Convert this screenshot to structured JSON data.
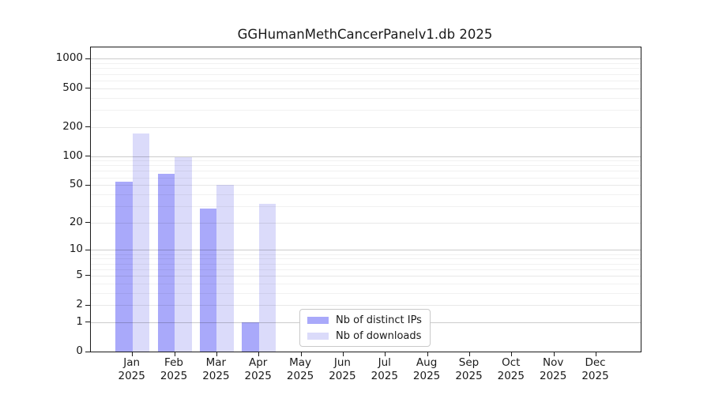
{
  "chart_data": {
    "type": "bar",
    "title": "GGHumanMethCancerPanelv1.db 2025",
    "categories": [
      "Jan",
      "Feb",
      "Mar",
      "Apr",
      "May",
      "Jun",
      "Jul",
      "Aug",
      "Sep",
      "Oct",
      "Nov",
      "Dec"
    ],
    "category_year": "2025",
    "series": [
      {
        "name": "Nb of distinct IPs",
        "color": "#a9a9fa",
        "values": [
          54,
          66,
          28,
          1,
          0,
          0,
          0,
          0,
          0,
          0,
          0,
          0
        ]
      },
      {
        "name": "Nb of downloads",
        "color": "#dbdbfa",
        "values": [
          170,
          98,
          50,
          32,
          0,
          0,
          0,
          0,
          0,
          0,
          0,
          0
        ]
      }
    ],
    "xlabel": "",
    "ylabel": "",
    "yscale": "log10(value+1)",
    "ylim": [
      0,
      1300
    ],
    "y_tick_labels": [
      "1000",
      "500",
      "200",
      "100",
      "50",
      "20",
      "10",
      "5",
      "2",
      "1",
      "0"
    ],
    "y_grid": {
      "major": [
        1,
        10,
        100,
        1000
      ],
      "mid": [
        2,
        5,
        20,
        50,
        200,
        500
      ],
      "minor": [
        3,
        4,
        6,
        7,
        8,
        9,
        30,
        40,
        60,
        70,
        80,
        90,
        300,
        400,
        600,
        700,
        800,
        900
      ]
    },
    "grid": "horizontal major+minor, drawn over bars",
    "legend_position": "bottom-center"
  }
}
